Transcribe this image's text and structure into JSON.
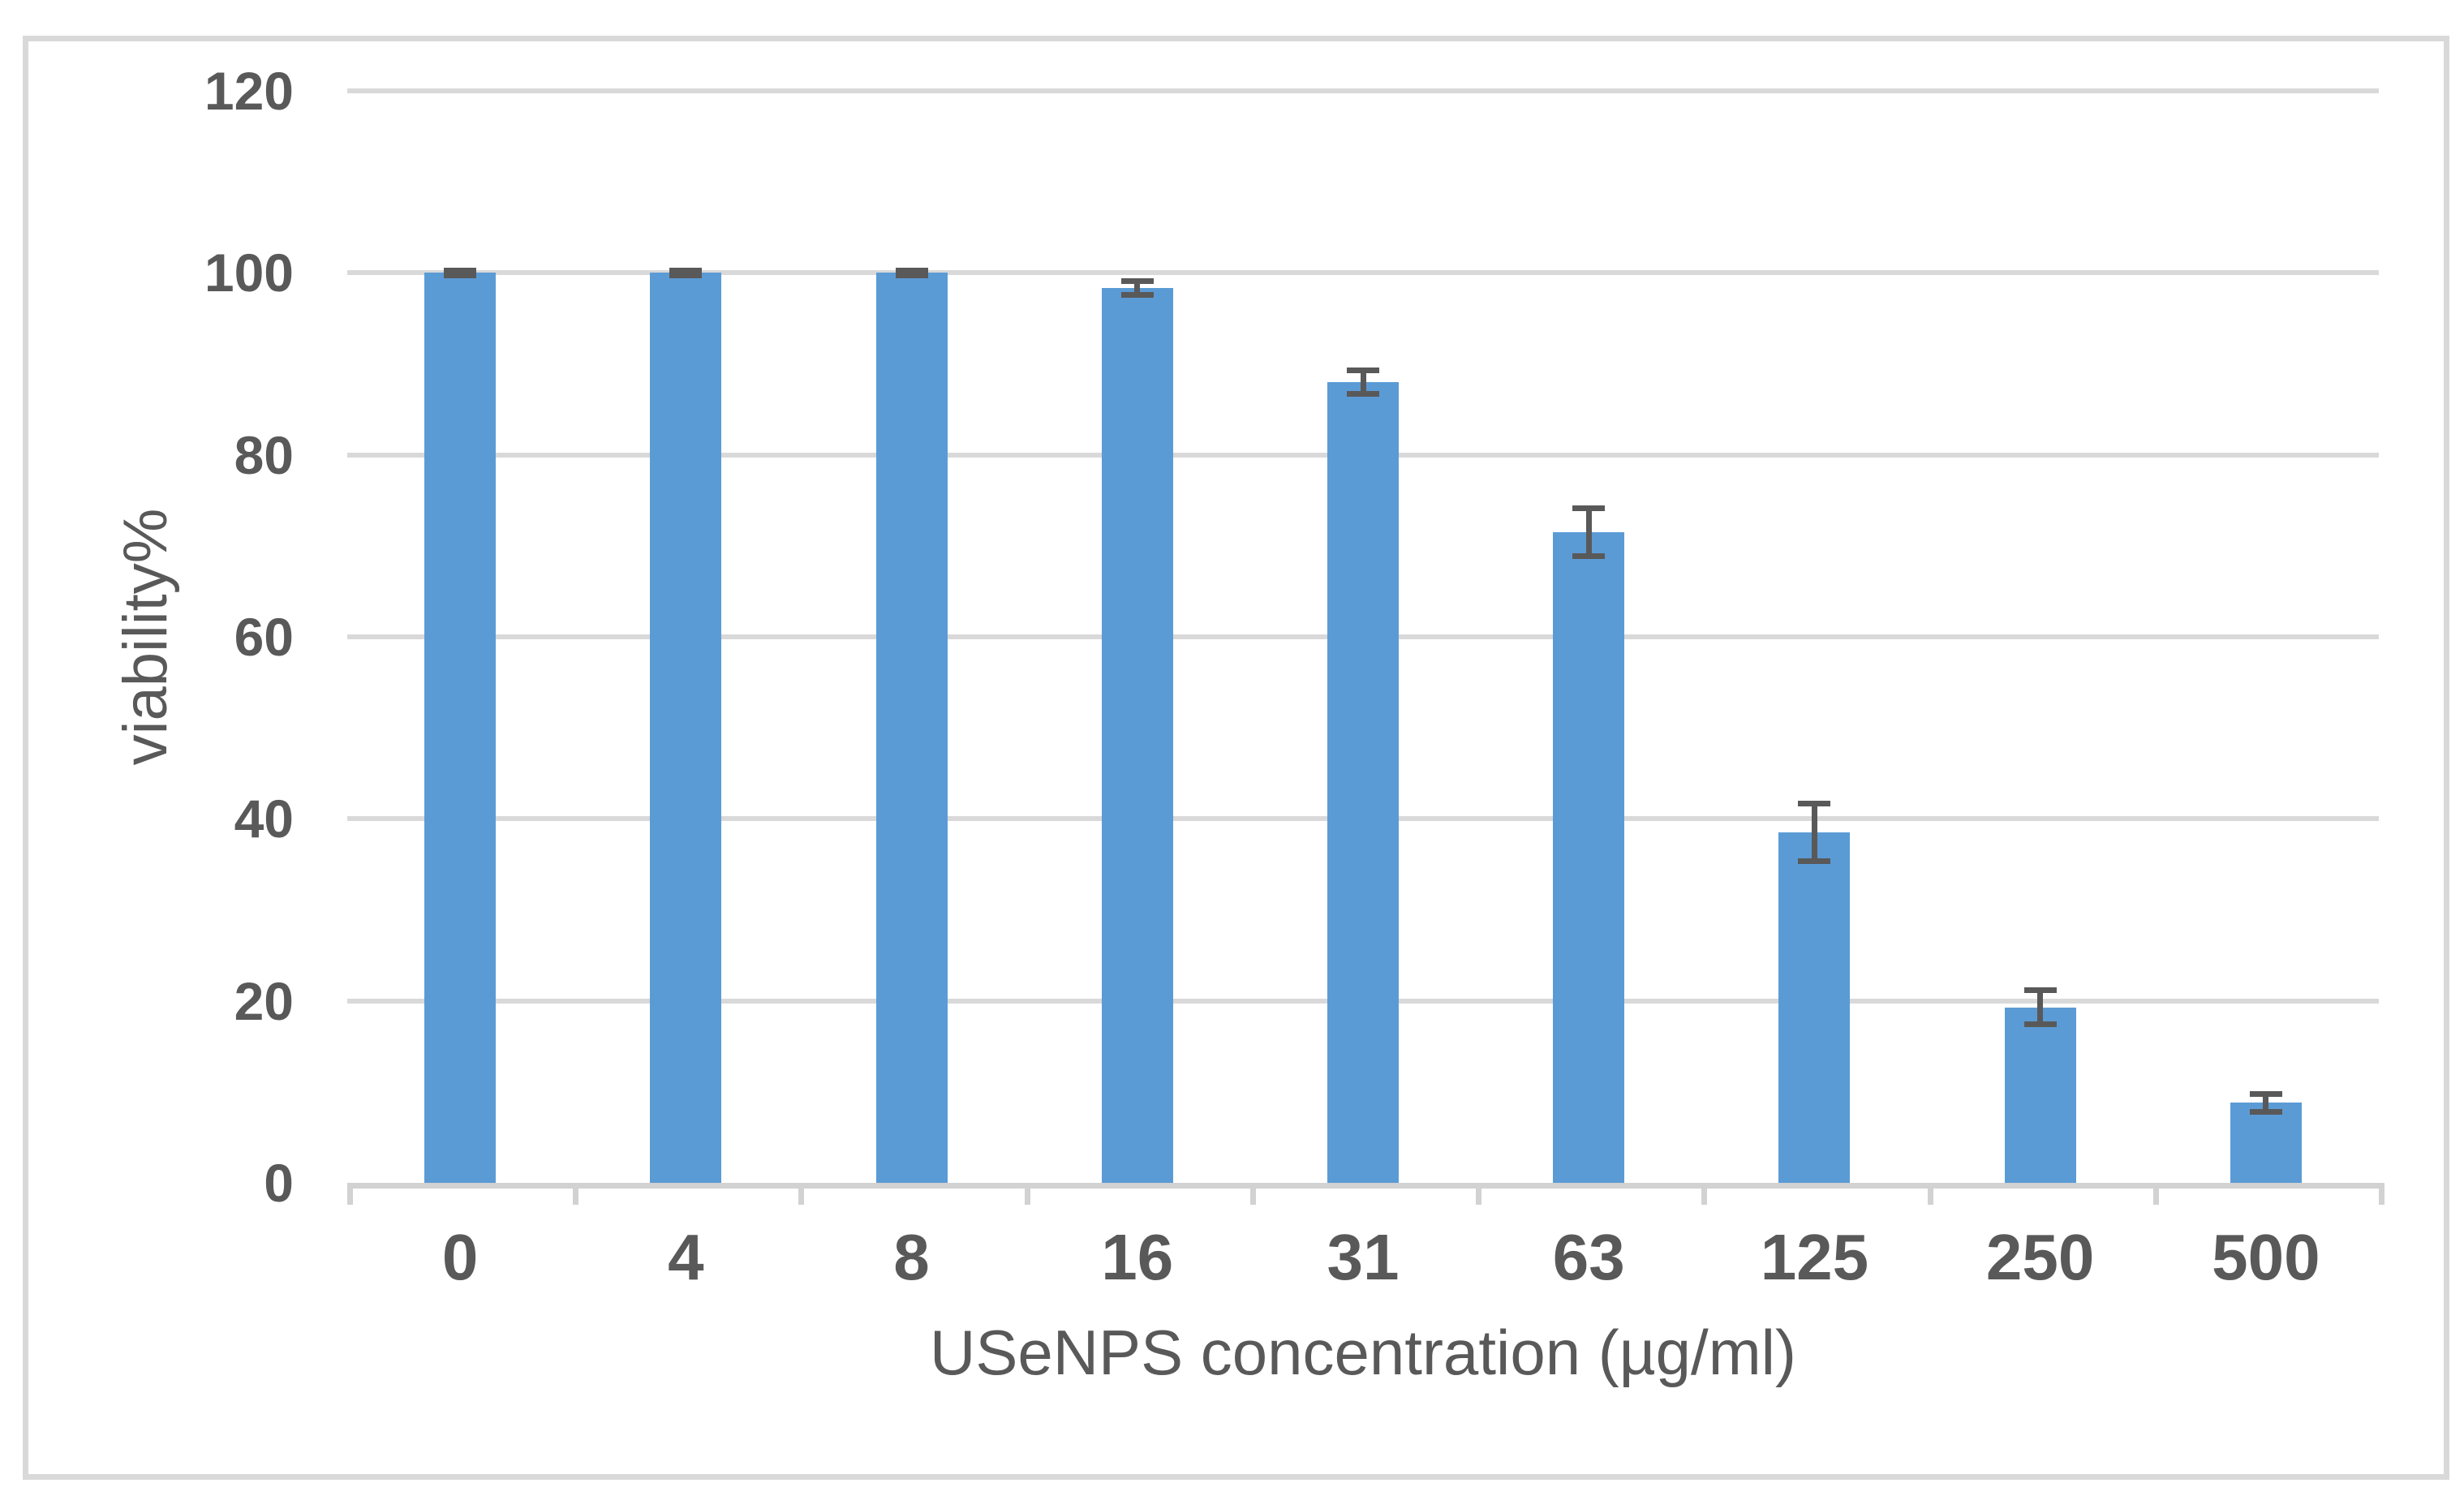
{
  "chart_data": {
    "type": "bar",
    "title": "",
    "categories": [
      "0",
      "4",
      "8",
      "16",
      "31",
      "63",
      "125",
      "250",
      "500"
    ],
    "values": [
      100,
      100,
      100,
      98.3,
      88,
      71.5,
      38.5,
      19.3,
      8.8
    ],
    "errors": [
      0.3,
      0.3,
      0.3,
      0.8,
      1.3,
      2.7,
      3.2,
      1.9,
      1.0
    ],
    "series_name": "viability%",
    "xlabel": "USeNPS concentration (µg/ml)",
    "ylabel": "viability%",
    "ylim": [
      0,
      120
    ],
    "yticks": [
      0,
      20,
      40,
      60,
      80,
      100,
      120
    ],
    "grid": "horizontal",
    "legend_position": "none",
    "colors": {
      "bar": "#5B9BD5",
      "error_bar": "#595959",
      "gridline": "#D9D9D9",
      "axis_line": "#D2D2D2",
      "text": "#595959",
      "frame_border": "#D9D9D9",
      "background": "#FFFFFF"
    }
  }
}
